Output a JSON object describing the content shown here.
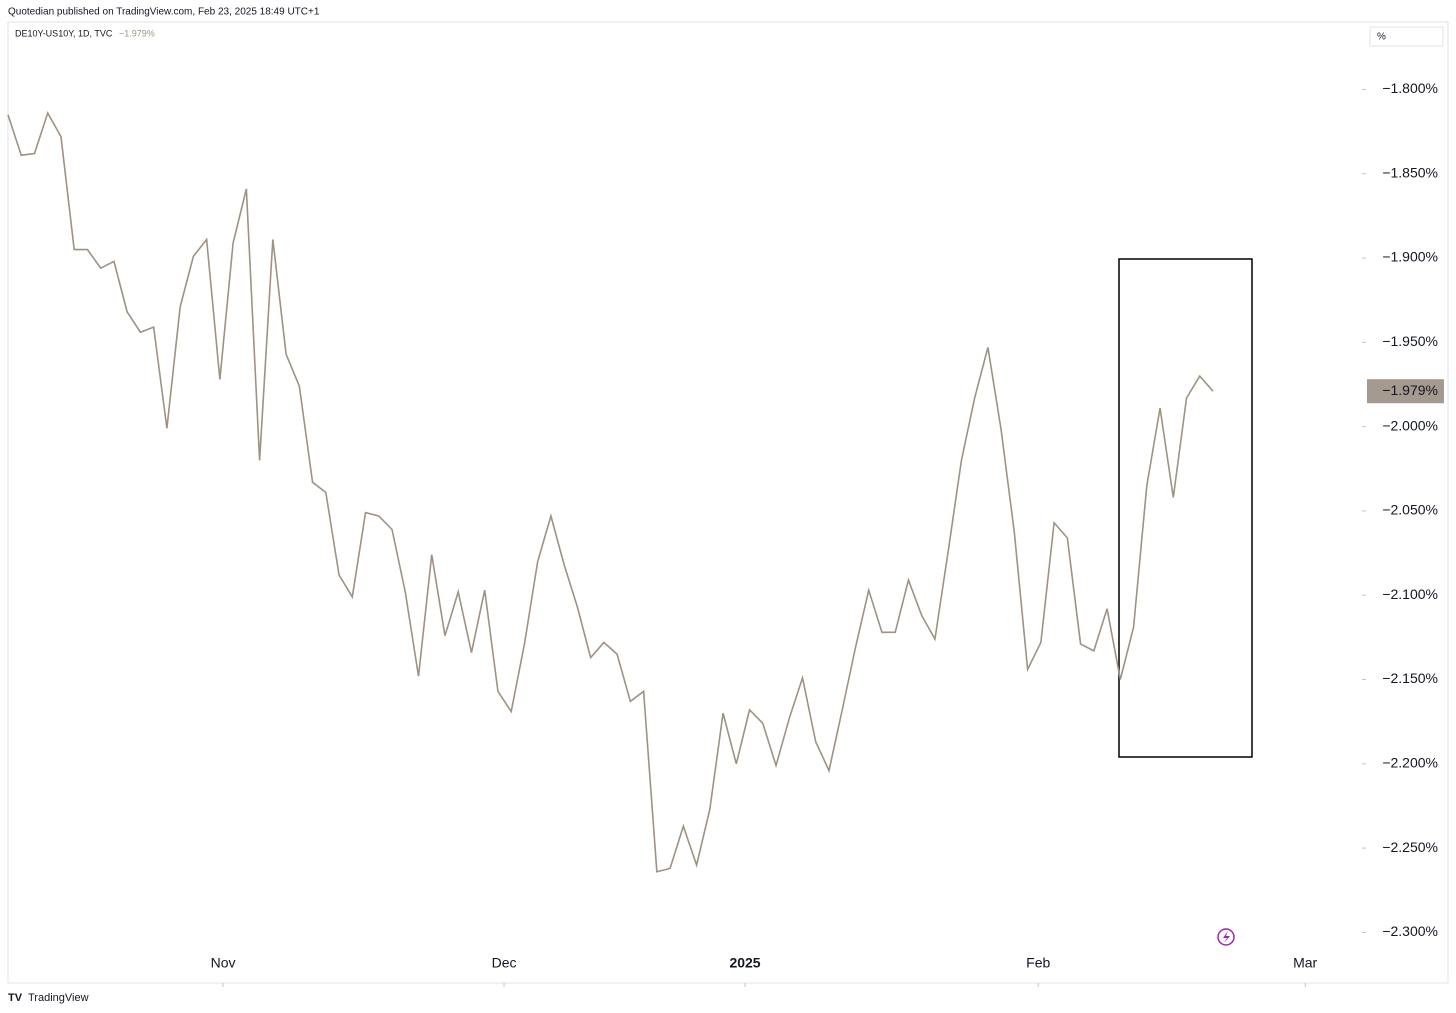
{
  "header": {
    "published": "Quotedian published on TradingView.com, Feb 23, 2025 18:49 UTC+1",
    "brand": "TradingView"
  },
  "chart_data": {
    "type": "line",
    "symbol": "DE10Y-US10Y, 1D, TVC",
    "last_label": "−1.979%",
    "scale_label": "%",
    "color": "#9e9283",
    "values": [
      -1.815,
      -1.839,
      -1.838,
      -1.814,
      -1.828,
      -1.895,
      -1.895,
      -1.906,
      -1.902,
      -1.932,
      -1.944,
      -1.941,
      -2.001,
      -1.929,
      -1.899,
      -1.889,
      -1.972,
      -1.891,
      -1.859,
      -2.02,
      -1.889,
      -1.957,
      -1.976,
      -2.033,
      -2.039,
      -2.088,
      -2.101,
      -2.051,
      -2.053,
      -2.061,
      -2.098,
      -2.148,
      -2.076,
      -2.124,
      -2.098,
      -2.134,
      -2.097,
      -2.157,
      -2.169,
      -2.129,
      -2.08,
      -2.053,
      -2.082,
      -2.107,
      -2.137,
      -2.128,
      -2.135,
      -2.163,
      -2.157,
      -2.264,
      -2.262,
      -2.237,
      -2.26,
      -2.227,
      -2.17,
      -2.2,
      -2.168,
      -2.176,
      -2.201,
      -2.173,
      -2.149,
      -2.187,
      -2.204,
      -2.168,
      -2.131,
      -2.097,
      -2.122,
      -2.122,
      -2.091,
      -2.112,
      -2.126,
      -2.074,
      -2.02,
      -1.983,
      -1.953,
      -2.002,
      -2.063,
      -2.144,
      -2.128,
      -2.057,
      -2.066,
      -2.129,
      -2.133,
      -2.108,
      -2.15,
      -2.119,
      -2.035,
      -1.989,
      -2.042,
      -1.983,
      -1.97,
      -1.979
    ],
    "xlim": [
      0,
      102.1
    ],
    "xticks": [
      {
        "value": 16.24,
        "label": "Nov"
      },
      {
        "value": 37.46,
        "label": "Dec"
      },
      {
        "value": 55.66,
        "label": "2025"
      },
      {
        "value": 77.8,
        "label": "Feb"
      },
      {
        "value": 97.96,
        "label": "Mar"
      }
    ],
    "ylim": [
      -2.33,
      -1.76
    ],
    "yticks": [
      {
        "value": -1.8,
        "label": "−1.800%"
      },
      {
        "value": -1.85,
        "label": "−1.850%"
      },
      {
        "value": -1.9,
        "label": "−1.900%"
      },
      {
        "value": -1.95,
        "label": "−1.950%"
      },
      {
        "value": -2.0,
        "label": "−2.000%"
      },
      {
        "value": -2.05,
        "label": "−2.050%"
      },
      {
        "value": -2.1,
        "label": "−2.100%"
      },
      {
        "value": -2.15,
        "label": "−2.150%"
      },
      {
        "value": -2.2,
        "label": "−2.200%"
      },
      {
        "value": -2.25,
        "label": "−2.250%"
      },
      {
        "value": -2.3,
        "label": "−2.300%"
      }
    ]
  }
}
